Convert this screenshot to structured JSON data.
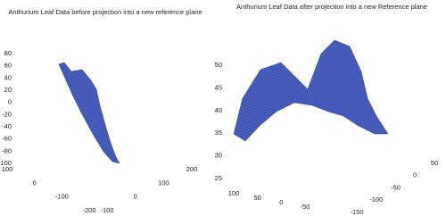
{
  "chart_data": [
    {
      "type": "mesh",
      "title": "Anthurium Leaf Data before projection into a new reference plane",
      "color": "#3a50b4",
      "zlim": [
        -100,
        80
      ],
      "zticks": [
        -100,
        -80,
        -60,
        -40,
        -20,
        0,
        20,
        40,
        60,
        80
      ],
      "ylim": [
        -200,
        100
      ],
      "yticks": [
        -200,
        -100,
        0,
        100
      ],
      "xlim": [
        -100,
        200
      ],
      "xticks": [
        -100,
        0,
        100,
        200
      ]
    },
    {
      "type": "mesh",
      "title": "Anthurium Leaf Data after projection into a new Reference plane",
      "color": "#3a50b4",
      "zlim": [
        25,
        50
      ],
      "zticks": [
        25,
        30,
        35,
        40,
        45,
        50
      ],
      "ylim": [
        -50,
        100
      ],
      "yticks": [
        -50,
        0,
        50,
        100
      ],
      "xlim": [
        -150,
        50
      ],
      "xticks": [
        -150,
        -100,
        -50,
        0,
        50
      ]
    }
  ]
}
